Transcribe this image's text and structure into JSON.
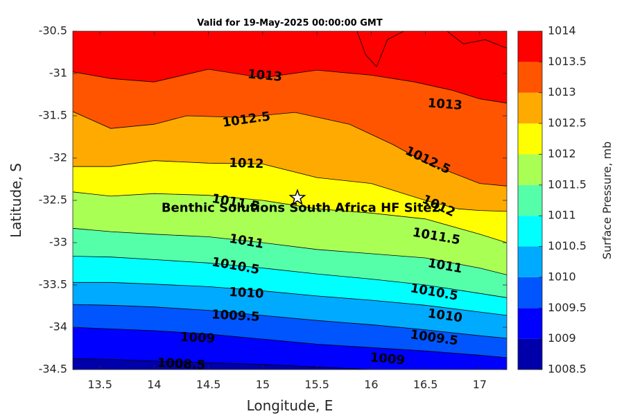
{
  "chart_data": {
    "type": "contour",
    "title": "Valid for 19-May-2025 00:00:00 GMT",
    "xlabel": "Longitude, E",
    "ylabel": "Latitude, S",
    "colorbar_label": "Surface Pressure, mb",
    "xlim": [
      13.25,
      17.25
    ],
    "ylim": [
      -34.5,
      -30.5
    ],
    "xticks": [
      "13.5",
      "14",
      "14.5",
      "15",
      "15.5",
      "16",
      "16.5",
      "17"
    ],
    "yticks": [
      "-30.5",
      "-31",
      "-31.5",
      "-32",
      "-32.5",
      "-33",
      "-33.5",
      "-34",
      "-34.5"
    ],
    "colorbar_ticks": [
      "1014",
      "1013.5",
      "1013",
      "1012.5",
      "1012",
      "1011.5",
      "1011",
      "1010.5",
      "1010",
      "1009.5",
      "1009",
      "1008.5"
    ],
    "levels": [
      1008.5,
      1009,
      1009.5,
      1010,
      1010.5,
      1011,
      1011.5,
      1012,
      1012.5,
      1013,
      1013.5,
      1014
    ],
    "band_colors": [
      "#0000aa",
      "#0000ff",
      "#0055ff",
      "#00aaff",
      "#00ffff",
      "#55ffaa",
      "#aaff55",
      "#ffff00",
      "#ffaa00",
      "#ff5500",
      "#ff0000",
      "#aa0000"
    ],
    "contours": [
      {
        "level": 1008.5,
        "points": [
          [
            13.25,
            -34.37
          ],
          [
            13.6,
            -34.38
          ],
          [
            14,
            -34.4
          ],
          [
            14.5,
            -34.42
          ],
          [
            15,
            -34.44
          ],
          [
            15.5,
            -34.47
          ],
          [
            16,
            -34.5
          ]
        ]
      },
      {
        "level": 1009,
        "points": [
          [
            13.25,
            -34.0
          ],
          [
            13.6,
            -34.02
          ],
          [
            14,
            -34.04
          ],
          [
            14.5,
            -34.08
          ],
          [
            15,
            -34.14
          ],
          [
            15.5,
            -34.2
          ],
          [
            16,
            -34.24
          ],
          [
            16.5,
            -34.28
          ],
          [
            17,
            -34.33
          ],
          [
            17.25,
            -34.36
          ]
        ]
      },
      {
        "level": 1009.5,
        "points": [
          [
            13.25,
            -33.73
          ],
          [
            13.6,
            -33.74
          ],
          [
            14,
            -33.76
          ],
          [
            14.5,
            -33.8
          ],
          [
            15,
            -33.86
          ],
          [
            15.5,
            -33.92
          ],
          [
            16,
            -33.97
          ],
          [
            16.5,
            -34.03
          ],
          [
            17,
            -34.1
          ],
          [
            17.25,
            -34.13
          ]
        ]
      },
      {
        "level": 1010,
        "points": [
          [
            13.25,
            -33.47
          ],
          [
            13.6,
            -33.47
          ],
          [
            14,
            -33.49
          ],
          [
            14.5,
            -33.52
          ],
          [
            15,
            -33.57
          ],
          [
            15.5,
            -33.63
          ],
          [
            16,
            -33.68
          ],
          [
            16.5,
            -33.74
          ],
          [
            17,
            -33.82
          ],
          [
            17.25,
            -33.86
          ]
        ]
      },
      {
        "level": 1010.5,
        "points": [
          [
            13.25,
            -33.16
          ],
          [
            13.6,
            -33.17
          ],
          [
            14,
            -33.2
          ],
          [
            14.5,
            -33.24
          ],
          [
            15,
            -33.3
          ],
          [
            15.5,
            -33.37
          ],
          [
            16,
            -33.43
          ],
          [
            16.5,
            -33.5
          ],
          [
            17,
            -33.6
          ],
          [
            17.25,
            -33.65
          ]
        ]
      },
      {
        "level": 1011,
        "points": [
          [
            13.25,
            -32.83
          ],
          [
            13.6,
            -32.87
          ],
          [
            14,
            -32.9
          ],
          [
            14.5,
            -32.93
          ],
          [
            15,
            -33.0
          ],
          [
            15.5,
            -33.08
          ],
          [
            16,
            -33.13
          ],
          [
            16.5,
            -33.18
          ],
          [
            17,
            -33.3
          ],
          [
            17.25,
            -33.38
          ]
        ]
      },
      {
        "level": 1011.5,
        "points": [
          [
            13.25,
            -32.4
          ],
          [
            13.6,
            -32.45
          ],
          [
            14,
            -32.42
          ],
          [
            14.5,
            -32.44
          ],
          [
            15,
            -32.5
          ],
          [
            15.5,
            -32.6
          ],
          [
            16,
            -32.65
          ],
          [
            16.5,
            -32.72
          ],
          [
            17,
            -32.9
          ],
          [
            17.25,
            -33.0
          ]
        ]
      },
      {
        "level": 1012,
        "points": [
          [
            13.25,
            -32.1
          ],
          [
            13.6,
            -32.1
          ],
          [
            14,
            -32.03
          ],
          [
            14.5,
            -32.06
          ],
          [
            15,
            -32.07
          ],
          [
            15.5,
            -32.23
          ],
          [
            16,
            -32.3
          ],
          [
            16.5,
            -32.5
          ],
          [
            16.8,
            -32.6
          ],
          [
            17,
            -32.62
          ],
          [
            17.25,
            -32.63
          ]
        ]
      },
      {
        "level": 1012.5,
        "points": [
          [
            13.25,
            -31.45
          ],
          [
            13.6,
            -31.65
          ],
          [
            14,
            -31.6
          ],
          [
            14.3,
            -31.5
          ],
          [
            14.8,
            -31.52
          ],
          [
            15.3,
            -31.46
          ],
          [
            15.8,
            -31.6
          ],
          [
            16.2,
            -31.84
          ],
          [
            16.5,
            -32.05
          ],
          [
            17,
            -32.3
          ],
          [
            17.25,
            -32.33
          ]
        ]
      },
      {
        "level": 1013,
        "points": [
          [
            13.25,
            -30.98
          ],
          [
            13.6,
            -31.06
          ],
          [
            14,
            -31.1
          ],
          [
            14.5,
            -30.95
          ],
          [
            15,
            -31.05
          ],
          [
            15.5,
            -30.96
          ],
          [
            16,
            -31.02
          ],
          [
            16.4,
            -31.1
          ],
          [
            16.75,
            -31.2
          ],
          [
            17,
            -31.3
          ],
          [
            17.25,
            -31.35
          ]
        ]
      },
      {
        "level": 1013.5,
        "points": [
          [
            15.87,
            -30.5
          ],
          [
            15.95,
            -30.78
          ],
          [
            16.05,
            -30.92
          ],
          [
            16.15,
            -30.6
          ],
          [
            16.3,
            -30.5
          ]
        ]
      },
      {
        "level": 1013.5,
        "points": [
          [
            16.7,
            -30.5
          ],
          [
            16.85,
            -30.65
          ],
          [
            17.05,
            -30.6
          ],
          [
            17.25,
            -30.7
          ]
        ]
      }
    ],
    "contour_labels": [
      {
        "text": "1013",
        "x": 15.02,
        "y": -31.03,
        "angle": 5
      },
      {
        "text": "1013",
        "x": 16.68,
        "y": -31.37,
        "angle": 4
      },
      {
        "text": "1012.5",
        "x": 14.85,
        "y": -31.55,
        "angle": -8
      },
      {
        "text": "1012.5",
        "x": 16.52,
        "y": -32.03,
        "angle": 25
      },
      {
        "text": "1012",
        "x": 14.85,
        "y": -32.07,
        "angle": 2
      },
      {
        "text": "1012",
        "x": 16.62,
        "y": -32.57,
        "angle": 25
      },
      {
        "text": "1011.5",
        "x": 14.75,
        "y": -32.53,
        "angle": 10
      },
      {
        "text": "1011.5",
        "x": 16.6,
        "y": -32.93,
        "angle": 10
      },
      {
        "text": "1011",
        "x": 14.85,
        "y": -32.99,
        "angle": 10
      },
      {
        "text": "1011",
        "x": 16.68,
        "y": -33.28,
        "angle": 10
      },
      {
        "text": "1010.5",
        "x": 14.75,
        "y": -33.28,
        "angle": 10
      },
      {
        "text": "1010.5",
        "x": 16.58,
        "y": -33.59,
        "angle": 10
      },
      {
        "text": "1010",
        "x": 14.85,
        "y": -33.6,
        "angle": 3
      },
      {
        "text": "1010",
        "x": 16.68,
        "y": -33.87,
        "angle": 8
      },
      {
        "text": "1009.5",
        "x": 14.75,
        "y": -33.87,
        "angle": 3
      },
      {
        "text": "1009.5",
        "x": 16.58,
        "y": -34.13,
        "angle": 8
      },
      {
        "text": "1009",
        "x": 14.4,
        "y": -34.13,
        "angle": 3
      },
      {
        "text": "1009",
        "x": 16.15,
        "y": -34.38,
        "angle": 5
      },
      {
        "text": "1008.5",
        "x": 14.25,
        "y": -34.44,
        "angle": 3
      }
    ],
    "site": {
      "name": "Benthic Solutions South Africa HF Site2",
      "x": 15.32,
      "y": -32.47
    }
  }
}
